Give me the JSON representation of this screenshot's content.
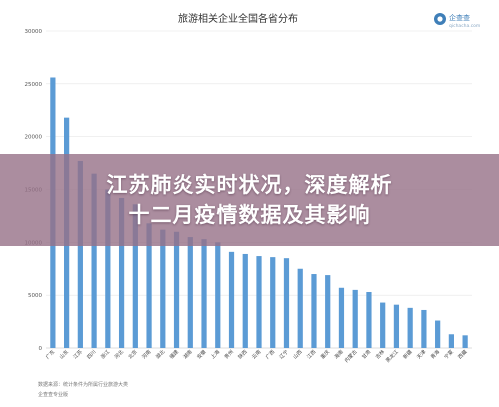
{
  "overlay": {
    "line1": "江苏肺炎实时状况，深度解析",
    "line2": "十二月疫情数据及其影响"
  },
  "logo": {
    "name": "企查查",
    "sub": "qichacha.com"
  },
  "colors": {
    "bar": "#5b9bd5",
    "overlay": "#967087",
    "grid": "#e6e6e6"
  },
  "chart_data": {
    "type": "bar",
    "title": "旅游相关企业全国各省分布",
    "ylim": [
      0,
      30000
    ],
    "yticks": [
      0,
      5000,
      10000,
      15000,
      20000,
      25000,
      30000
    ],
    "grid": true,
    "legend": "none",
    "categories": [
      "广东",
      "山东",
      "江苏",
      "四川",
      "浙江",
      "河北",
      "北京",
      "河南",
      "湖北",
      "福建",
      "湖南",
      "安徽",
      "上海",
      "贵州",
      "陕西",
      "云南",
      "广西",
      "辽宁",
      "山西",
      "江西",
      "重庆",
      "海南",
      "内蒙古",
      "甘肃",
      "吉林",
      "黑龙江",
      "新疆",
      "天津",
      "青海",
      "宁夏",
      "西藏"
    ],
    "values": [
      25600,
      21800,
      17700,
      16500,
      15000,
      14200,
      13600,
      11800,
      11200,
      11000,
      10500,
      10300,
      10000,
      9100,
      8900,
      8700,
      8600,
      8500,
      7500,
      7000,
      6900,
      5700,
      5500,
      5300,
      4300,
      4100,
      3800,
      3600,
      2600,
      1300,
      1200
    ],
    "notes": [
      "数据来源：统计条件为所属行业旅游大类",
      "企查查专业版"
    ]
  }
}
